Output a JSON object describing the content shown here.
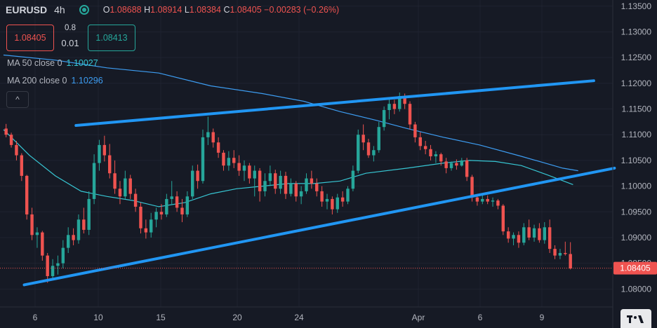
{
  "header": {
    "symbol": "EURUSD",
    "timeframe": "4h",
    "open_label": "O",
    "open": "1.08688",
    "high_label": "H",
    "high": "1.08914",
    "low_label": "L",
    "low": "1.08384",
    "close_label": "C",
    "close": "1.08405",
    "change": "−0.00283 (−0.26%)"
  },
  "trade": {
    "sell_price": "1.08405",
    "buy_price": "1.08413",
    "spread_top": "0.8",
    "spread_bottom": "0.01"
  },
  "indicators": [
    {
      "label": "MA 50 close 0",
      "value": "1.10027",
      "color": "#37c6d3"
    },
    {
      "label": "MA 200 close 0",
      "value": "1.10296",
      "color": "#3d9df2"
    }
  ],
  "collapse_icon": "chevron-up-icon",
  "chart_data": {
    "type": "candlestick",
    "symbol": "EURUSD",
    "interval": "4h",
    "y_axis": {
      "ticks": [
        "1.13500",
        "1.13000",
        "1.12500",
        "1.12000",
        "1.11500",
        "1.11000",
        "1.10500",
        "1.10000",
        "1.09500",
        "1.09000",
        "1.08500",
        "1.08000"
      ],
      "range": [
        1.0765,
        1.1362
      ],
      "position": "right"
    },
    "x_axis": {
      "ticks": [
        "6",
        "10",
        "15",
        "20",
        "24",
        "Apr",
        "6",
        "9"
      ],
      "range": [
        0,
        117
      ]
    },
    "last_price": "1.08405",
    "colors": {
      "up": "#26a69a",
      "down": "#ef5350",
      "trendline": "#2196f3",
      "ma50": "#37c6d3",
      "ma200": "#3d9df2",
      "background": "#161a25",
      "grid": "#1f2330"
    },
    "candles": [
      [
        1.1112,
        1.1121,
        1.1095,
        1.11
      ],
      [
        1.11,
        1.1104,
        1.1075,
        1.108
      ],
      [
        1.108,
        1.1088,
        1.105,
        1.106
      ],
      [
        1.106,
        1.1064,
        1.101,
        1.102
      ],
      [
        1.102,
        1.1022,
        1.0935,
        1.0945
      ],
      [
        1.0945,
        1.0958,
        1.0895,
        1.0905
      ],
      [
        1.0905,
        1.092,
        1.088,
        1.091
      ],
      [
        1.091,
        1.0913,
        1.0855,
        1.0865
      ],
      [
        1.0865,
        1.087,
        1.0812,
        1.0825
      ],
      [
        1.0825,
        1.0858,
        1.0818,
        1.0845
      ],
      [
        1.0845,
        1.0865,
        1.0828,
        1.085
      ],
      [
        1.085,
        1.0895,
        1.084,
        1.088
      ],
      [
        1.088,
        1.092,
        1.087,
        1.0905
      ],
      [
        1.0905,
        1.0918,
        1.0885,
        1.0895
      ],
      [
        1.0895,
        1.0945,
        1.0888,
        1.0935
      ],
      [
        1.0935,
        1.0958,
        1.0908,
        1.0915
      ],
      [
        1.0915,
        1.099,
        1.0905,
        1.0975
      ],
      [
        1.0975,
        1.1062,
        1.0965,
        1.1045
      ],
      [
        1.1045,
        1.109,
        1.103,
        1.108
      ],
      [
        1.108,
        1.1098,
        1.1048,
        1.106
      ],
      [
        1.106,
        1.1082,
        1.1015,
        1.1025
      ],
      [
        1.1025,
        1.105,
        1.0985,
        1.0995
      ],
      [
        1.0995,
        1.101,
        1.0965,
        1.098
      ],
      [
        1.098,
        1.103,
        1.0975,
        1.1015
      ],
      [
        1.1015,
        1.1022,
        1.0975,
        1.0985
      ],
      [
        1.0985,
        1.0995,
        1.095,
        1.096
      ],
      [
        1.096,
        1.0968,
        1.0908,
        1.0918
      ],
      [
        1.0918,
        1.0935,
        1.0898,
        1.091
      ],
      [
        1.091,
        1.0948,
        1.09,
        1.0935
      ],
      [
        1.0935,
        1.0958,
        1.092,
        1.095
      ],
      [
        1.095,
        1.0965,
        1.0935,
        1.0945
      ],
      [
        1.0945,
        1.0985,
        1.094,
        1.0975
      ],
      [
        1.0975,
        1.101,
        1.0965,
        1.098
      ],
      [
        1.098,
        1.099,
        1.095,
        1.0958
      ],
      [
        1.0958,
        1.0975,
        1.093,
        1.0945
      ],
      [
        1.0945,
        1.099,
        1.094,
        1.098
      ],
      [
        1.098,
        1.104,
        1.0975,
        1.103
      ],
      [
        1.103,
        1.1042,
        1.0995,
        1.101
      ],
      [
        1.101,
        1.111,
        1.1005,
        1.1095
      ],
      [
        1.1095,
        1.1135,
        1.108,
        1.1105
      ],
      [
        1.1105,
        1.1112,
        1.1075,
        1.1085
      ],
      [
        1.1085,
        1.1095,
        1.1055,
        1.1065
      ],
      [
        1.1065,
        1.107,
        1.103,
        1.104
      ],
      [
        1.104,
        1.1068,
        1.103,
        1.1055
      ],
      [
        1.1055,
        1.107,
        1.1035,
        1.1045
      ],
      [
        1.1045,
        1.106,
        1.102,
        1.103
      ],
      [
        1.103,
        1.105,
        1.101,
        1.104
      ],
      [
        1.104,
        1.1045,
        1.1005,
        1.1015
      ],
      [
        1.1015,
        1.104,
        1.098,
        1.103
      ],
      [
        1.103,
        1.1035,
        1.097,
        1.099
      ],
      [
        1.099,
        1.1025,
        1.098,
        1.101
      ],
      [
        1.101,
        1.104,
        1.1,
        1.1025
      ],
      [
        1.1025,
        1.1032,
        1.0985,
        1.0995
      ],
      [
        1.0995,
        1.103,
        1.0985,
        1.102
      ],
      [
        1.102,
        1.1028,
        1.0975,
        1.0985
      ],
      [
        1.0985,
        1.1015,
        1.098,
        1.1005
      ],
      [
        1.1005,
        1.101,
        1.097,
        1.098
      ],
      [
        1.098,
        1.1,
        1.0965,
        1.099
      ],
      [
        1.099,
        1.1025,
        1.0985,
        1.1015
      ],
      [
        1.1015,
        1.103,
        1.0995,
        1.1005
      ],
      [
        1.1005,
        1.1015,
        1.098,
        1.099
      ],
      [
        1.099,
        1.1,
        1.096,
        1.097
      ],
      [
        1.097,
        1.0985,
        1.0955,
        1.0975
      ],
      [
        1.0975,
        1.098,
        1.0945,
        1.0955
      ],
      [
        1.0955,
        1.0985,
        1.0948,
        1.0978
      ],
      [
        1.0978,
        1.099,
        1.096,
        1.097
      ],
      [
        1.097,
        1.1,
        1.0965,
        1.0995
      ],
      [
        1.0995,
        1.104,
        1.099,
        1.103
      ],
      [
        1.103,
        1.111,
        1.1025,
        1.11
      ],
      [
        1.11,
        1.112,
        1.107,
        1.1085
      ],
      [
        1.1085,
        1.1092,
        1.1055,
        1.106
      ],
      [
        1.106,
        1.1078,
        1.1048,
        1.107
      ],
      [
        1.107,
        1.1125,
        1.1065,
        1.1115
      ],
      [
        1.1115,
        1.1155,
        1.1108,
        1.1148
      ],
      [
        1.1148,
        1.117,
        1.113,
        1.116
      ],
      [
        1.116,
        1.1168,
        1.114,
        1.115
      ],
      [
        1.115,
        1.1182,
        1.1145,
        1.1175
      ],
      [
        1.1175,
        1.118,
        1.115,
        1.116
      ],
      [
        1.116,
        1.1165,
        1.111,
        1.112
      ],
      [
        1.112,
        1.1125,
        1.1085,
        1.1095
      ],
      [
        1.1095,
        1.1105,
        1.107,
        1.1078
      ],
      [
        1.1078,
        1.1088,
        1.1062,
        1.1072
      ],
      [
        1.1072,
        1.108,
        1.105,
        1.1058
      ],
      [
        1.1058,
        1.1068,
        1.1045,
        1.1062
      ],
      [
        1.1062,
        1.1065,
        1.104,
        1.1048
      ],
      [
        1.1048,
        1.1055,
        1.1025,
        1.1035
      ],
      [
        1.1035,
        1.1048,
        1.103,
        1.1045
      ],
      [
        1.1045,
        1.1052,
        1.1032,
        1.104
      ],
      [
        1.104,
        1.1055,
        1.1038,
        1.105
      ],
      [
        1.105,
        1.1055,
        1.101,
        1.1018
      ],
      [
        1.1018,
        1.1022,
        1.097,
        1.0978
      ],
      [
        1.0978,
        1.0985,
        1.0962,
        1.097
      ],
      [
        1.097,
        1.0982,
        1.0965,
        1.0975
      ],
      [
        1.0975,
        1.0982,
        1.0965,
        1.097
      ],
      [
        1.097,
        1.0978,
        1.096,
        1.0972
      ],
      [
        1.0972,
        1.0975,
        1.0955,
        1.0962
      ],
      [
        1.0962,
        1.0965,
        1.0905,
        1.0912
      ],
      [
        1.0912,
        1.092,
        1.089,
        1.0898
      ],
      [
        1.0898,
        1.091,
        1.0885,
        1.0905
      ],
      [
        1.0905,
        1.0912,
        1.088,
        1.089
      ],
      [
        1.089,
        1.0928,
        1.0885,
        1.092
      ],
      [
        1.092,
        1.0935,
        1.0895,
        1.09
      ],
      [
        1.09,
        1.0925,
        1.0892,
        1.0918
      ],
      [
        1.0918,
        1.0928,
        1.089,
        1.0895
      ],
      [
        1.0895,
        1.093,
        1.0888,
        1.092
      ],
      [
        1.092,
        1.0935,
        1.087,
        1.0878
      ],
      [
        1.0878,
        1.0885,
        1.0858,
        1.0865
      ],
      [
        1.0865,
        1.0878,
        1.0858,
        1.087
      ],
      [
        1.087,
        1.0892,
        1.0865,
        1.0868
      ],
      [
        1.0868,
        1.0891,
        1.0838,
        1.084
      ]
    ],
    "moving_averages": [
      {
        "label": "MA 50 close 0",
        "value": 1.10027,
        "points": [
          [
            0,
            1.111
          ],
          [
            5,
            1.106
          ],
          [
            10,
            1.102
          ],
          [
            15,
            1.099
          ],
          [
            20,
            1.098
          ],
          [
            25,
            1.0972
          ],
          [
            30,
            1.096
          ],
          [
            35,
            1.0968
          ],
          [
            40,
            1.0985
          ],
          [
            45,
            1.0995
          ],
          [
            50,
            1.1
          ],
          [
            55,
            1.1005
          ],
          [
            60,
            1.1005
          ],
          [
            65,
            1.101
          ],
          [
            70,
            1.1025
          ],
          [
            78,
            1.1035
          ],
          [
            85,
            1.1045
          ],
          [
            90,
            1.105
          ],
          [
            95,
            1.1048
          ],
          [
            100,
            1.104
          ],
          [
            105,
            1.1022
          ],
          [
            110,
            1.1003
          ]
        ]
      },
      {
        "label": "MA 200 close 0",
        "value": 1.10296,
        "points": [
          [
            0,
            1.1255
          ],
          [
            10,
            1.1245
          ],
          [
            20,
            1.123
          ],
          [
            30,
            1.122
          ],
          [
            40,
            1.1195
          ],
          [
            50,
            1.118
          ],
          [
            58,
            1.1165
          ],
          [
            65,
            1.1145
          ],
          [
            72,
            1.1128
          ],
          [
            78,
            1.1112
          ],
          [
            85,
            1.1095
          ],
          [
            92,
            1.108
          ],
          [
            100,
            1.1058
          ],
          [
            108,
            1.1035
          ],
          [
            111,
            1.103
          ]
        ]
      }
    ],
    "trendlines": [
      {
        "from": [
          14,
          1.1118
        ],
        "to": [
          114,
          1.1205
        ]
      },
      {
        "from": [
          4,
          1.0808
        ],
        "to": [
          118,
          1.1035
        ]
      }
    ]
  }
}
